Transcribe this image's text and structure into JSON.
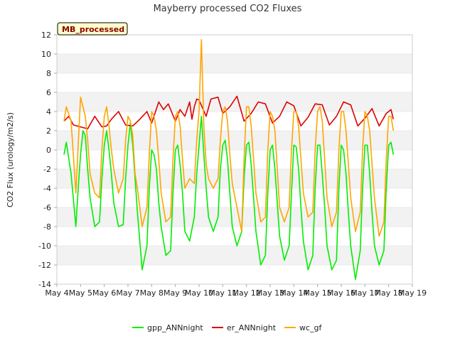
{
  "chart_data": {
    "type": "line",
    "title": "Mayberry processed CO2 Fluxes",
    "xlabel": "",
    "ylabel": "CO2 Flux (urology/m2/s)",
    "badge": "MB_processed",
    "ylim": [
      -14,
      12
    ],
    "yticks": [
      -14,
      -12,
      -10,
      -8,
      -6,
      -4,
      -2,
      0,
      2,
      4,
      6,
      8,
      10,
      12
    ],
    "xlim": [
      4,
      19
    ],
    "xticks": [
      4,
      5,
      6,
      7,
      8,
      9,
      10,
      11,
      12,
      13,
      14,
      15,
      16,
      17,
      18,
      19
    ],
    "xtick_labels": [
      "May 4",
      "May 5",
      "May 6",
      "May 7",
      "May 8",
      "May 9",
      "May 10",
      "May 11",
      "May 12",
      "May 13",
      "May 14",
      "May 15",
      "May 16",
      "May 17",
      "May 18",
      "May 19"
    ],
    "legend_position": "bottom",
    "colors": {
      "gpp_ANNnight": "#00ee00",
      "er_ANNnight": "#dd0000",
      "wc_gf": "#ffa500",
      "band": "#f2f2f2",
      "grid": "#dddddd",
      "axis": "#aaaaaa"
    },
    "series": [
      {
        "name": "gpp_ANNnight",
        "x": [
          4.3,
          4.4,
          4.6,
          4.8,
          4.9,
          5.0,
          5.1,
          5.2,
          5.3,
          5.4,
          5.6,
          5.8,
          5.9,
          6.0,
          6.1,
          6.2,
          6.3,
          6.4,
          6.6,
          6.8,
          6.9,
          7.0,
          7.1,
          7.2,
          7.3,
          7.4,
          7.6,
          7.8,
          7.9,
          8.0,
          8.1,
          8.2,
          8.3,
          8.4,
          8.6,
          8.8,
          8.9,
          9.0,
          9.1,
          9.2,
          9.3,
          9.4,
          9.6,
          9.8,
          9.9,
          10.0,
          10.1,
          10.2,
          10.3,
          10.4,
          10.6,
          10.8,
          10.9,
          11.0,
          11.1,
          11.2,
          11.3,
          11.4,
          11.6,
          11.8,
          11.9,
          12.0,
          12.1,
          12.2,
          12.3,
          12.4,
          12.6,
          12.8,
          12.9,
          13.0,
          13.1,
          13.2,
          13.3,
          13.4,
          13.6,
          13.8,
          13.9,
          14.0,
          14.1,
          14.2,
          14.3,
          14.4,
          14.6,
          14.8,
          14.9,
          15.0,
          15.1,
          15.2,
          15.3,
          15.4,
          15.6,
          15.8,
          15.9,
          16.0,
          16.1,
          16.2,
          16.3,
          16.4,
          16.6,
          16.8,
          16.9,
          17.0,
          17.1,
          17.2,
          17.3,
          17.4,
          17.6,
          17.8,
          17.9,
          18.0,
          18.1,
          18.2
        ],
        "y": [
          -0.5,
          0.8,
          -2.5,
          -8.0,
          -4.0,
          -0.5,
          2.0,
          1.5,
          -2.0,
          -5.0,
          -8.0,
          -7.5,
          -3.0,
          0.5,
          2.0,
          0.0,
          -2.5,
          -5.5,
          -8.0,
          -7.8,
          -3.0,
          0.5,
          2.8,
          0.5,
          -3.0,
          -6.5,
          -12.5,
          -10.0,
          -4.0,
          0.0,
          -0.5,
          -2.0,
          -5.5,
          -8.0,
          -11.0,
          -10.5,
          -4.5,
          0.0,
          0.5,
          -1.5,
          -4.5,
          -8.5,
          -9.5,
          -7.0,
          -2.5,
          0.5,
          3.5,
          -0.5,
          -4.0,
          -7.0,
          -8.5,
          -7.0,
          -2.0,
          0.5,
          1.0,
          -1.0,
          -4.5,
          -8.0,
          -10.0,
          -8.5,
          -3.0,
          0.5,
          0.8,
          -1.5,
          -5.0,
          -8.5,
          -12.0,
          -11.0,
          -4.5,
          0.0,
          0.5,
          -2.0,
          -5.5,
          -9.0,
          -11.5,
          -10.0,
          -4.5,
          0.5,
          0.3,
          -2.0,
          -6.0,
          -9.5,
          -12.5,
          -11.0,
          -4.0,
          0.5,
          0.5,
          -2.5,
          -6.0,
          -10.0,
          -12.5,
          -11.5,
          -4.0,
          0.5,
          0.0,
          -2.5,
          -6.5,
          -10.0,
          -13.5,
          -10.5,
          -4.0,
          0.5,
          0.5,
          -2.5,
          -6.5,
          -10.0,
          -12.0,
          -10.5,
          -4.0,
          0.5,
          0.8,
          -0.5
        ]
      },
      {
        "name": "er_ANNnight",
        "x": [
          4.3,
          4.5,
          4.7,
          5.0,
          5.3,
          5.6,
          5.9,
          6.1,
          6.3,
          6.6,
          6.9,
          7.2,
          7.5,
          7.8,
          8.0,
          8.3,
          8.5,
          8.7,
          9.0,
          9.2,
          9.4,
          9.6,
          9.7,
          9.8,
          9.9,
          10.0,
          10.3,
          10.5,
          10.8,
          11.0,
          11.3,
          11.6,
          11.9,
          12.2,
          12.5,
          12.8,
          13.1,
          13.4,
          13.7,
          14.0,
          14.3,
          14.6,
          14.9,
          15.2,
          15.5,
          15.8,
          16.1,
          16.4,
          16.7,
          17.0,
          17.3,
          17.6,
          17.9,
          18.1,
          18.2
        ],
        "y": [
          3.0,
          3.5,
          2.6,
          2.4,
          2.2,
          3.5,
          2.4,
          2.5,
          3.2,
          4.0,
          2.6,
          2.5,
          3.2,
          4.0,
          2.8,
          5.0,
          4.2,
          4.8,
          3.0,
          4.2,
          3.5,
          5.0,
          3.2,
          4.5,
          5.3,
          5.2,
          3.5,
          5.3,
          5.5,
          3.8,
          4.5,
          5.6,
          3.0,
          3.8,
          5.0,
          4.8,
          2.8,
          3.5,
          5.0,
          4.6,
          2.5,
          3.4,
          4.8,
          4.7,
          2.6,
          3.5,
          5.0,
          4.7,
          2.5,
          3.3,
          4.3,
          2.5,
          3.8,
          4.2,
          3.2
        ]
      },
      {
        "name": "wc_gf",
        "x": [
          4.3,
          4.4,
          4.6,
          4.8,
          4.9,
          5.0,
          5.1,
          5.2,
          5.3,
          5.4,
          5.6,
          5.8,
          5.9,
          6.0,
          6.1,
          6.2,
          6.3,
          6.4,
          6.6,
          6.8,
          6.9,
          7.0,
          7.1,
          7.2,
          7.3,
          7.4,
          7.6,
          7.8,
          7.9,
          8.0,
          8.1,
          8.2,
          8.3,
          8.4,
          8.6,
          8.8,
          8.9,
          9.0,
          9.1,
          9.2,
          9.3,
          9.4,
          9.6,
          9.8,
          9.9,
          10.0,
          10.1,
          10.2,
          10.3,
          10.4,
          10.6,
          10.8,
          10.9,
          11.0,
          11.1,
          11.2,
          11.3,
          11.4,
          11.6,
          11.8,
          11.9,
          12.0,
          12.1,
          12.2,
          12.3,
          12.4,
          12.6,
          12.8,
          12.9,
          13.0,
          13.1,
          13.2,
          13.3,
          13.4,
          13.6,
          13.8,
          13.9,
          14.0,
          14.1,
          14.2,
          14.3,
          14.4,
          14.6,
          14.8,
          14.9,
          15.0,
          15.1,
          15.2,
          15.3,
          15.4,
          15.6,
          15.8,
          15.9,
          16.0,
          16.1,
          16.2,
          16.3,
          16.4,
          16.6,
          16.8,
          16.9,
          17.0,
          17.1,
          17.2,
          17.3,
          17.4,
          17.6,
          17.8,
          17.9,
          18.0,
          18.1,
          18.2
        ],
        "y": [
          3.0,
          4.5,
          3.0,
          -4.5,
          0.5,
          5.5,
          4.5,
          3.5,
          1.0,
          -2.5,
          -4.5,
          -5.0,
          0.0,
          3.5,
          4.5,
          2.5,
          0.0,
          -2.0,
          -4.5,
          -3.0,
          1.0,
          3.5,
          3.0,
          1.5,
          -2.5,
          -4.0,
          -8.0,
          -6.0,
          -0.5,
          4.0,
          3.5,
          2.0,
          -1.0,
          -4.5,
          -7.5,
          -7.0,
          -1.0,
          3.5,
          4.0,
          2.5,
          -1.0,
          -4.0,
          -3.0,
          -3.5,
          1.0,
          4.0,
          11.5,
          2.5,
          -1.5,
          -3.0,
          -4.0,
          -3.0,
          1.0,
          4.0,
          4.5,
          3.0,
          -0.5,
          -3.5,
          -6.0,
          -8.5,
          -1.0,
          4.5,
          4.5,
          2.5,
          -1.0,
          -4.5,
          -7.5,
          -7.0,
          0.0,
          4.0,
          3.5,
          2.0,
          -2.0,
          -6.0,
          -7.5,
          -6.0,
          0.0,
          4.0,
          4.0,
          2.5,
          -1.0,
          -4.5,
          -7.0,
          -6.5,
          0.0,
          4.0,
          4.5,
          3.0,
          -1.0,
          -5.0,
          -8.0,
          -6.5,
          0.0,
          4.0,
          4.0,
          2.0,
          -1.5,
          -5.0,
          -8.5,
          -6.5,
          0.0,
          4.0,
          3.5,
          2.0,
          -1.5,
          -5.0,
          -9.0,
          -7.5,
          -1.0,
          3.5,
          3.5,
          2.0
        ]
      }
    ]
  }
}
